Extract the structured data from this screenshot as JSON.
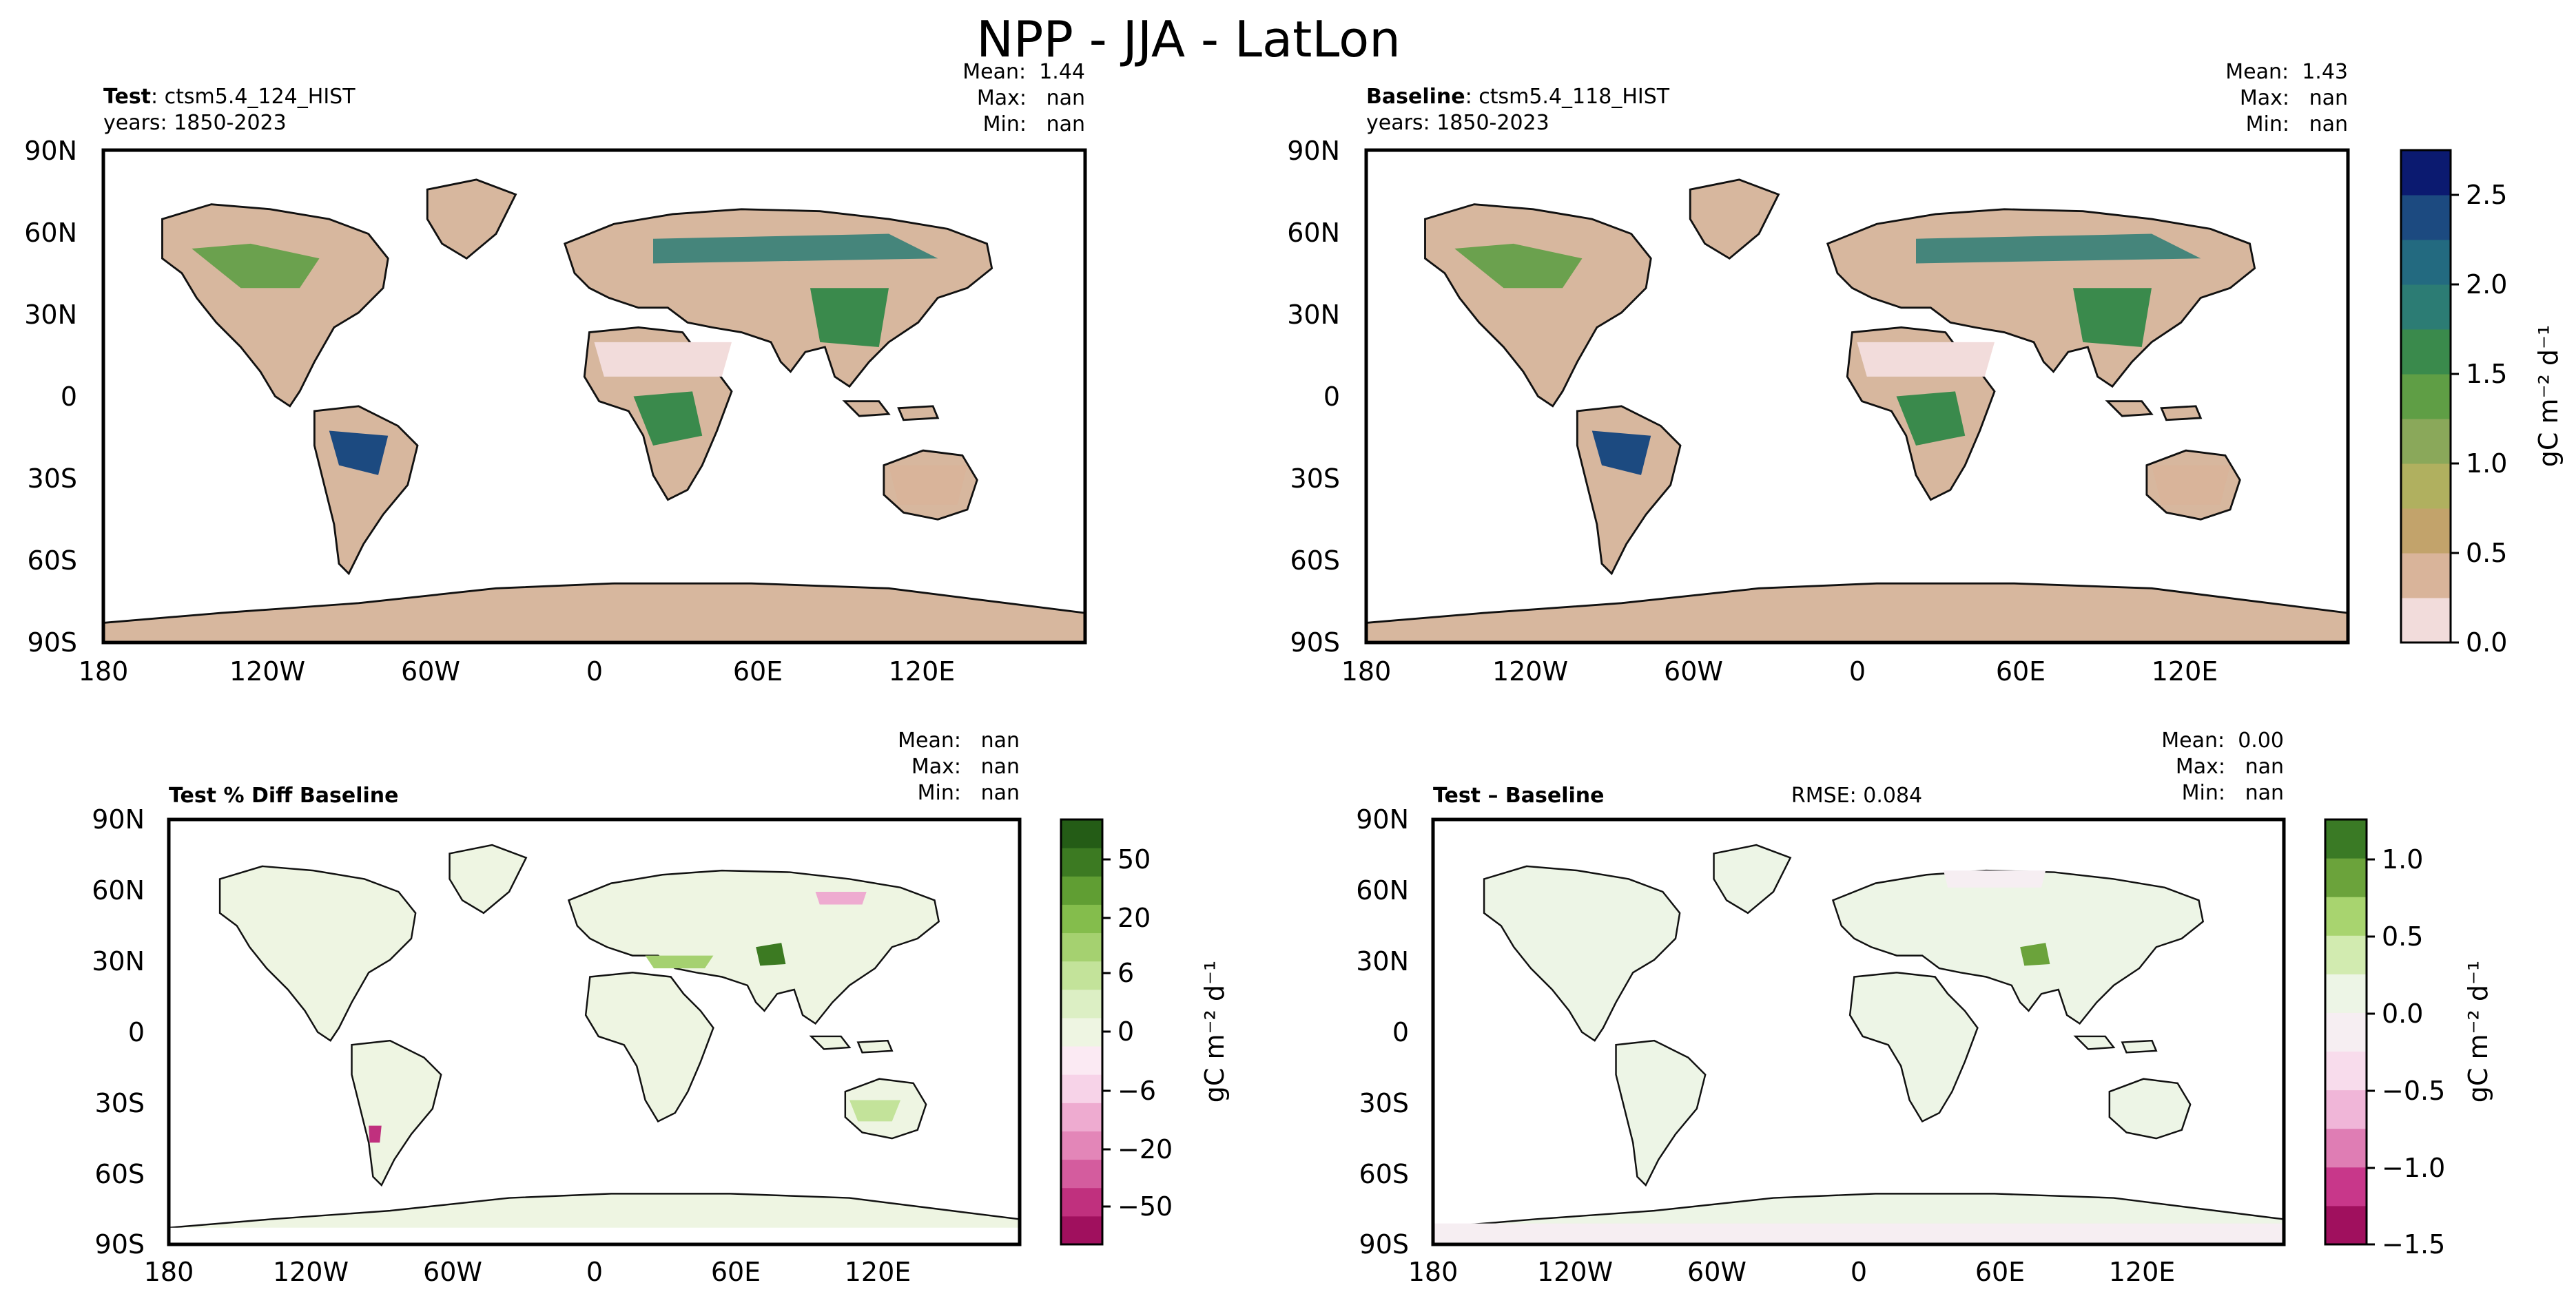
{
  "suptitle": "NPP - JJA - LatLon",
  "panels": {
    "test": {
      "title_bold": "Test",
      "title_rest": ": ctsm5.4_124_HIST",
      "years": "years: 1850-2023",
      "stats": {
        "mean": "Mean:  1.44",
        "max": "Max:   nan",
        "min": "Min:   nan"
      }
    },
    "baseline": {
      "title_bold": "Baseline",
      "title_rest": ": ctsm5.4_118_HIST",
      "years": "years: 1850-2023",
      "stats": {
        "mean": "Mean:  1.43",
        "max": "Max:   nan",
        "min": "Min:   nan"
      }
    },
    "pctdiff": {
      "title": "Test % Diff Baseline",
      "stats": {
        "mean": "Mean:   nan",
        "max": "Max:   nan",
        "min": "Min:   nan"
      }
    },
    "diff": {
      "title": "Test – Baseline",
      "rmse": "RMSE: 0.084",
      "stats": {
        "mean": "Mean:  0.00",
        "max": "Max:   nan",
        "min": "Min:   nan"
      }
    }
  },
  "axes": {
    "lat_ticks": [
      "90N",
      "60N",
      "30N",
      "0",
      "30S",
      "60S",
      "90S"
    ],
    "lon_ticks": [
      "180",
      "120W",
      "60W",
      "0",
      "60E",
      "120E"
    ]
  },
  "colorbars": {
    "abs": {
      "label": "gC m⁻² d⁻¹",
      "ticks": [
        "2.5",
        "2.0",
        "1.5",
        "1.0",
        "0.5",
        "0.0"
      ],
      "colors": [
        "#f2dcdb",
        "#d9b49a",
        "#c2a36b",
        "#b0b05f",
        "#8aa85a",
        "#5f9e45",
        "#3a8a4c",
        "#2c7c74",
        "#236a80",
        "#1c4a80",
        "#0b1a70"
      ]
    },
    "pct": {
      "label": "gC m⁻² d⁻¹",
      "ticks": [
        "50",
        "20",
        "6",
        "0",
        "−6",
        "−20",
        "−50"
      ],
      "colors": [
        "#a0105e",
        "#c0307e",
        "#d45c9e",
        "#e386b8",
        "#eeabd0",
        "#f7d3e8",
        "#fbeaf3",
        "#eef5e2",
        "#dcefc4",
        "#c3e39a",
        "#a5d170",
        "#84bd4c",
        "#609e33",
        "#3c7a22",
        "#245c16"
      ]
    },
    "diff": {
      "label": "gC m⁻² d⁻¹",
      "ticks": [
        "1.0",
        "0.5",
        "0.0",
        "−0.5",
        "−1.0",
        "−1.5"
      ],
      "colors": [
        "#a0105e",
        "#c8378a",
        "#df7db4",
        "#f0b6d8",
        "#f8dcec",
        "#f6eef2",
        "#edf5e6",
        "#d2ebb0",
        "#a8d46f",
        "#6ba33b",
        "#3a7a25"
      ]
    }
  }
}
